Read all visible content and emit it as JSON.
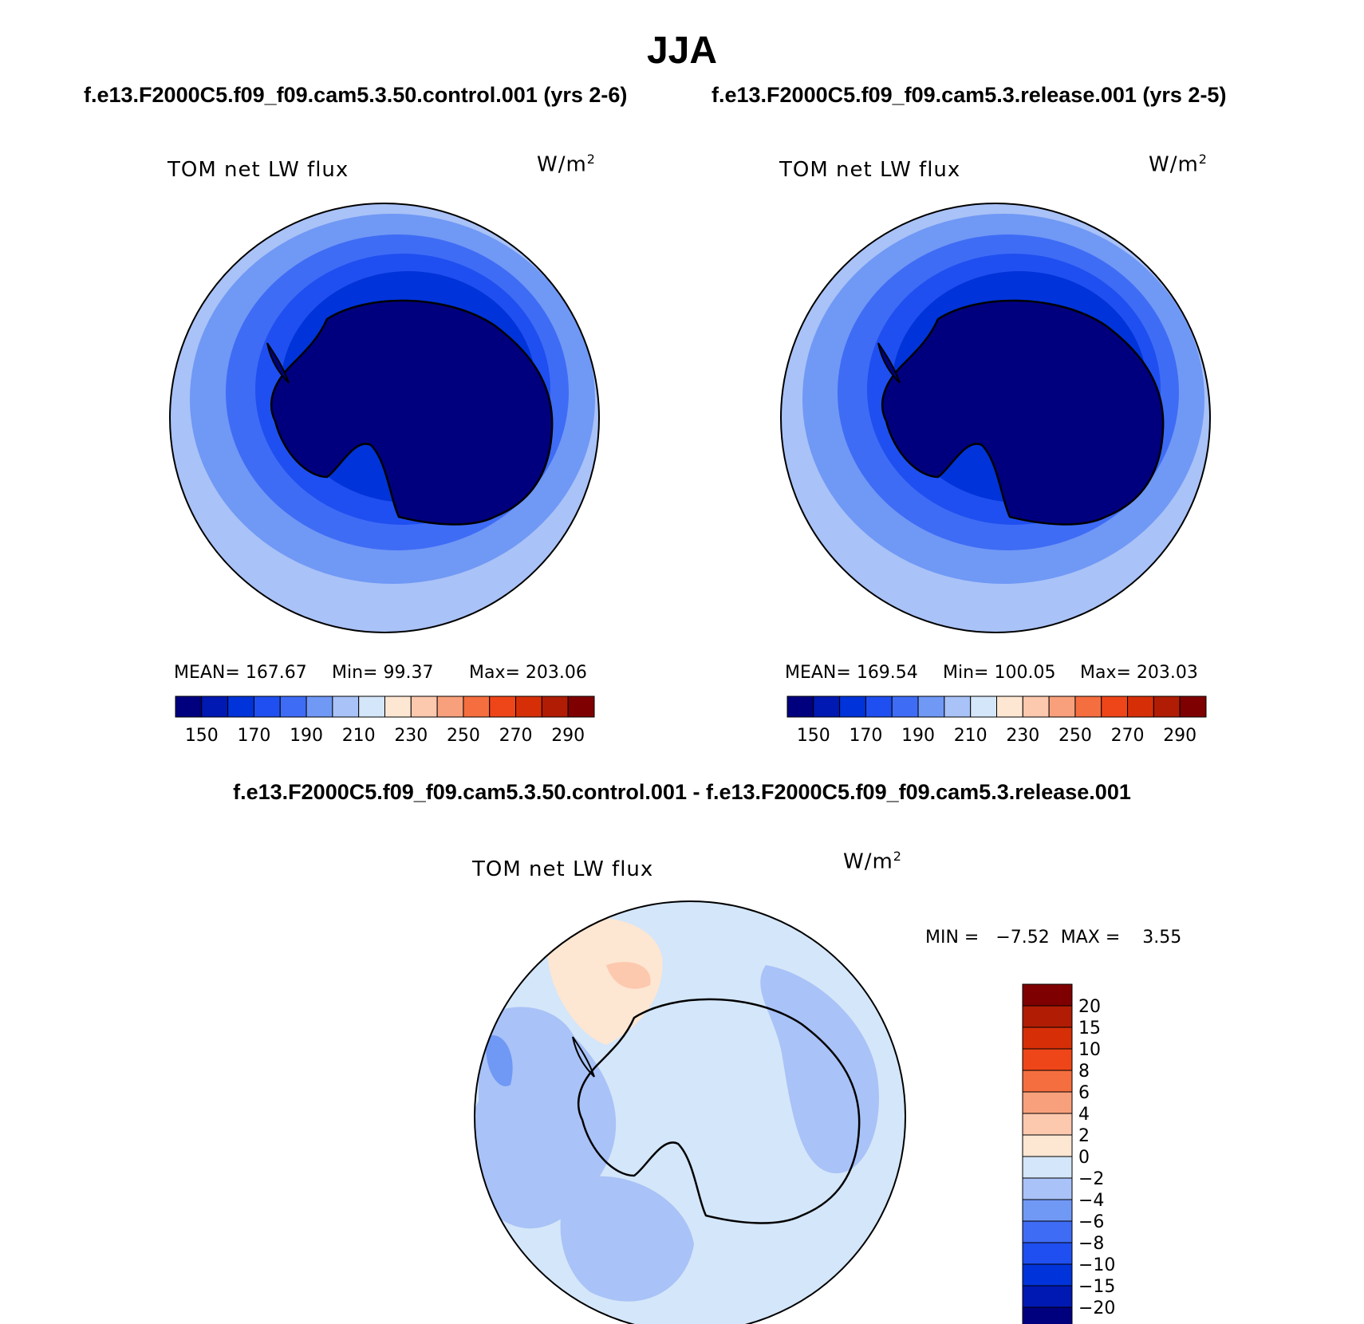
{
  "header": {
    "title": "JJA",
    "left_case": "f.e13.F2000C5.f09_f09.cam5.3.50.control.001 (yrs 2-6)",
    "right_case": "f.e13.F2000C5.f09_f09.cam5.3.release.001 (yrs 2-5)",
    "diff_title": "f.e13.F2000C5.f09_f09.cam5.3.50.control.001 - f.e13.F2000C5.f09_f09.cam5.3.release.001"
  },
  "panels": {
    "left": {
      "variable": "TOM net LW flux",
      "units_base": "W/m",
      "units_exp": "2",
      "stats": {
        "mean": "MEAN= 167.67",
        "min": "Min=  99.37",
        "max": "Max= 203.06"
      }
    },
    "right": {
      "variable": "TOM net LW flux",
      "units_base": "W/m",
      "units_exp": "2",
      "stats": {
        "mean": "MEAN= 169.54",
        "min": "Min= 100.05",
        "max": "Max= 203.03"
      }
    },
    "diff": {
      "variable": "TOM net LW flux",
      "units_base": "W/m",
      "units_exp": "2",
      "minmax": "MIN =   −7.52  MAX =    3.55"
    }
  },
  "colorbars": {
    "abs": {
      "colors": [
        "#00007f",
        "#0019b2",
        "#0033d9",
        "#1f4ff0",
        "#3f6cf5",
        "#7098f5",
        "#a9c2f7",
        "#d4e6f9",
        "#fde6d2",
        "#fcc8ae",
        "#f8a07c",
        "#f56e3f",
        "#ee4619",
        "#d62f08",
        "#b01d04",
        "#7f0000"
      ],
      "labels": [
        "150",
        "170",
        "190",
        "210",
        "230",
        "250",
        "270",
        "290"
      ]
    },
    "diff": {
      "colors": [
        "#7f0000",
        "#b01d04",
        "#d62f08",
        "#ee4619",
        "#f56e3f",
        "#f8a07c",
        "#fcc8ae",
        "#fde6d2",
        "#d4e6f9",
        "#a9c2f7",
        "#7098f5",
        "#3f6cf5",
        "#1f4ff0",
        "#0033d9",
        "#0019b2",
        "#00007f"
      ],
      "labels": [
        "20",
        "15",
        "10",
        "8",
        "6",
        "4",
        "2",
        "0",
        "−2",
        "−4",
        "−6",
        "−8",
        "−10",
        "−15",
        "−20"
      ]
    }
  },
  "map_colors": {
    "abs_ring_outer": "#a9c2f7",
    "abs_ring_1": "#7098f5",
    "abs_ring_2": "#3f6cf5",
    "abs_ring_3": "#1f4ff0",
    "abs_ring_4": "#0033d9",
    "abs_land": "#00007f",
    "diff_base": "#d4e6f9",
    "diff_neg": "#a9c2f7",
    "diff_neg_strong": "#7098f5",
    "diff_pos": "#fde6d2",
    "coast": "#000000"
  }
}
